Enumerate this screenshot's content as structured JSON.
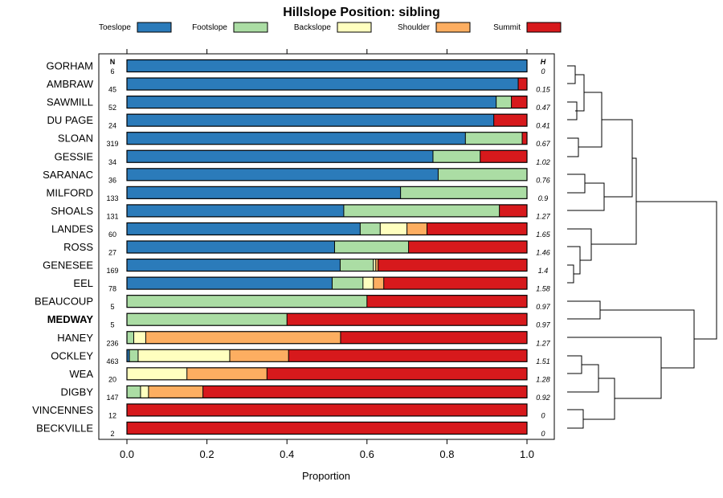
{
  "chart_data": {
    "type": "bar",
    "orientation": "horizontal",
    "stacked": true,
    "title": "Hillslope Position: sibling",
    "xlabel": "Proportion",
    "ylabel": "",
    "xlim": [
      0,
      1
    ],
    "xticks": [
      "0.0",
      "0.2",
      "0.4",
      "0.6",
      "0.8",
      "1.0"
    ],
    "n_header": "N",
    "h_header": "H",
    "legend_position": "top",
    "series": [
      {
        "name": "Toeslope",
        "color": "#2b7bba"
      },
      {
        "name": "Footslope",
        "color": "#abdda4"
      },
      {
        "name": "Backslope",
        "color": "#ffffbf"
      },
      {
        "name": "Shoulder",
        "color": "#fdae61"
      },
      {
        "name": "Summit",
        "color": "#d7191c"
      }
    ],
    "rows": [
      {
        "name": "GORHAM",
        "n": "6",
        "h": "0",
        "bold": false,
        "values": [
          1.0,
          0,
          0,
          0,
          0
        ]
      },
      {
        "name": "AMBRAW",
        "n": "45",
        "h": "0.15",
        "bold": false,
        "values": [
          0.978,
          0,
          0,
          0,
          0.022
        ]
      },
      {
        "name": "SAWMILL",
        "n": "52",
        "h": "0.47",
        "bold": false,
        "values": [
          0.923,
          0.038,
          0,
          0,
          0.039
        ]
      },
      {
        "name": "DU PAGE",
        "n": "24",
        "h": "0.41",
        "bold": false,
        "values": [
          0.917,
          0,
          0,
          0,
          0.083
        ]
      },
      {
        "name": "SLOAN",
        "n": "319",
        "h": "0.67",
        "bold": false,
        "values": [
          0.846,
          0.142,
          0,
          0,
          0.012
        ]
      },
      {
        "name": "GESSIE",
        "n": "34",
        "h": "1.02",
        "bold": false,
        "values": [
          0.765,
          0.118,
          0,
          0,
          0.117
        ]
      },
      {
        "name": "SARANAC",
        "n": "36",
        "h": "0.76",
        "bold": false,
        "values": [
          0.778,
          0.222,
          0,
          0,
          0
        ]
      },
      {
        "name": "MILFORD",
        "n": "133",
        "h": "0.9",
        "bold": false,
        "values": [
          0.684,
          0.316,
          0,
          0,
          0
        ]
      },
      {
        "name": "SHOALS",
        "n": "131",
        "h": "1.27",
        "bold": false,
        "values": [
          0.542,
          0.389,
          0,
          0,
          0.069
        ]
      },
      {
        "name": "LANDES",
        "n": "60",
        "h": "1.65",
        "bold": false,
        "values": [
          0.583,
          0.05,
          0.067,
          0.05,
          0.25
        ]
      },
      {
        "name": "ROSS",
        "n": "27",
        "h": "1.46",
        "bold": false,
        "values": [
          0.519,
          0.185,
          0,
          0,
          0.296
        ]
      },
      {
        "name": "GENESEE",
        "n": "169",
        "h": "1.4",
        "bold": false,
        "values": [
          0.533,
          0.083,
          0.006,
          0.006,
          0.372
        ]
      },
      {
        "name": "EEL",
        "n": "78",
        "h": "1.58",
        "bold": false,
        "values": [
          0.513,
          0.077,
          0.026,
          0.026,
          0.358
        ]
      },
      {
        "name": "BEAUCOUP",
        "n": "5",
        "h": "0.97",
        "bold": false,
        "values": [
          0,
          0.6,
          0,
          0,
          0.4
        ]
      },
      {
        "name": "MEDWAY",
        "n": "5",
        "h": "0.97",
        "bold": true,
        "values": [
          0,
          0.4,
          0,
          0,
          0.6
        ]
      },
      {
        "name": "HANEY",
        "n": "236",
        "h": "1.27",
        "bold": false,
        "values": [
          0,
          0.017,
          0.03,
          0.487,
          0.466
        ]
      },
      {
        "name": "OCKLEY",
        "n": "463",
        "h": "1.51",
        "bold": false,
        "values": [
          0.006,
          0.022,
          0.229,
          0.147,
          0.596
        ]
      },
      {
        "name": "WEA",
        "n": "20",
        "h": "1.28",
        "bold": false,
        "values": [
          0,
          0,
          0.15,
          0.2,
          0.65
        ]
      },
      {
        "name": "DIGBY",
        "n": "147",
        "h": "0.92",
        "bold": false,
        "values": [
          0,
          0.034,
          0.02,
          0.136,
          0.81
        ]
      },
      {
        "name": "VINCENNES",
        "n": "12",
        "h": "0",
        "bold": false,
        "values": [
          0,
          0,
          0,
          0,
          1.0
        ]
      },
      {
        "name": "BECKVILLE",
        "n": "2",
        "h": "0",
        "bold": false,
        "values": [
          0,
          0,
          0,
          0,
          1.0
        ]
      }
    ],
    "dendrogram": "hierarchical clustering of rows (leaf order matches rows, top to bottom)"
  }
}
